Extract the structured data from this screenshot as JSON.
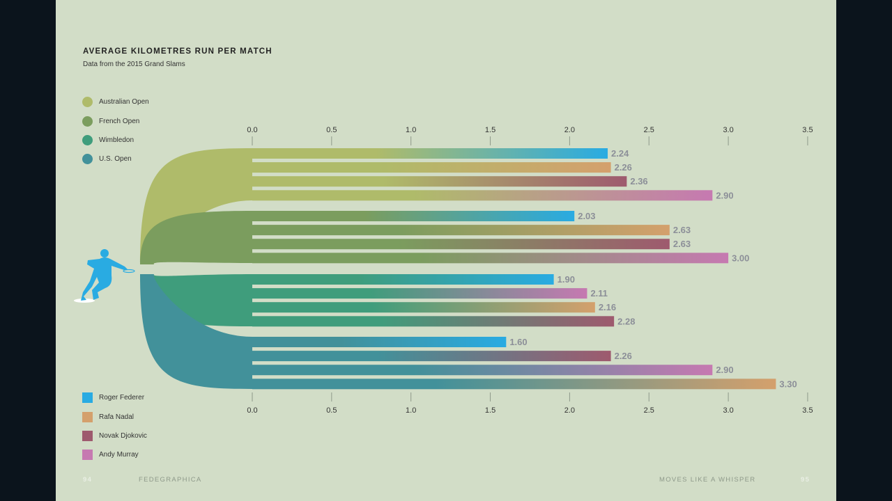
{
  "title": "AVERAGE KILOMETRES RUN PER MATCH",
  "subtitle": "Data from the 2015 Grand Slams",
  "legend_events": [
    {
      "label": "Australian Open",
      "color": "#afbb6a"
    },
    {
      "label": "French Open",
      "color": "#7b9d5e"
    },
    {
      "label": "Wimbledon",
      "color": "#3f9d7c"
    },
    {
      "label": "U.S. Open",
      "color": "#42919a"
    }
  ],
  "legend_players": [
    {
      "label": "Roger Federer",
      "color": "#29abe2"
    },
    {
      "label": "Rafa Nadal",
      "color": "#d4a06c"
    },
    {
      "label": "Novak Djokovic",
      "color": "#9e5a6e"
    },
    {
      "label": "Andy Murray",
      "color": "#c679b1"
    }
  ],
  "footer": {
    "left_page": "94",
    "left_label": "FEDEGRAPHICA",
    "right_label": "MOVES LIKE A WHISPER",
    "right_page": "95"
  },
  "chart_data": {
    "type": "bar",
    "orientation": "horizontal",
    "title": "AVERAGE KILOMETRES RUN PER MATCH",
    "subtitle": "Data from the 2015 Grand Slams",
    "xlim": [
      0,
      3.5
    ],
    "ticks": [
      "0.0",
      "0.5",
      "1.0",
      "1.5",
      "2.0",
      "2.5",
      "3.0",
      "3.5"
    ],
    "groups": [
      {
        "event": "Australian Open",
        "bars": [
          {
            "player": "Roger Federer",
            "value": 2.24,
            "label": "2.24"
          },
          {
            "player": "Rafa Nadal",
            "value": 2.26,
            "label": "2.26"
          },
          {
            "player": "Novak Djokovic",
            "value": 2.36,
            "label": "2.36"
          },
          {
            "player": "Andy Murray",
            "value": 2.9,
            "label": "2.90"
          }
        ]
      },
      {
        "event": "French Open",
        "bars": [
          {
            "player": "Roger Federer",
            "value": 2.03,
            "label": "2.03"
          },
          {
            "player": "Rafa Nadal",
            "value": 2.63,
            "label": "2.63"
          },
          {
            "player": "Novak Djokovic",
            "value": 2.63,
            "label": "2.63"
          },
          {
            "player": "Andy Murray",
            "value": 3.0,
            "label": "3.00"
          }
        ]
      },
      {
        "event": "Wimbledon",
        "bars": [
          {
            "player": "Roger Federer",
            "value": 1.9,
            "label": "1.90"
          },
          {
            "player": "Andy Murray",
            "value": 2.11,
            "label": "2.11"
          },
          {
            "player": "Rafa Nadal",
            "value": 2.16,
            "label": "2.16"
          },
          {
            "player": "Novak Djokovic",
            "value": 2.28,
            "label": "2.28"
          }
        ]
      },
      {
        "event": "U.S. Open",
        "bars": [
          {
            "player": "Roger Federer",
            "value": 1.6,
            "label": "1.60"
          },
          {
            "player": "Novak Djokovic",
            "value": 2.26,
            "label": "2.26"
          },
          {
            "player": "Andy Murray",
            "value": 2.9,
            "label": "2.90"
          },
          {
            "player": "Rafa Nadal",
            "value": 3.3,
            "label": "3.30"
          }
        ]
      }
    ]
  }
}
